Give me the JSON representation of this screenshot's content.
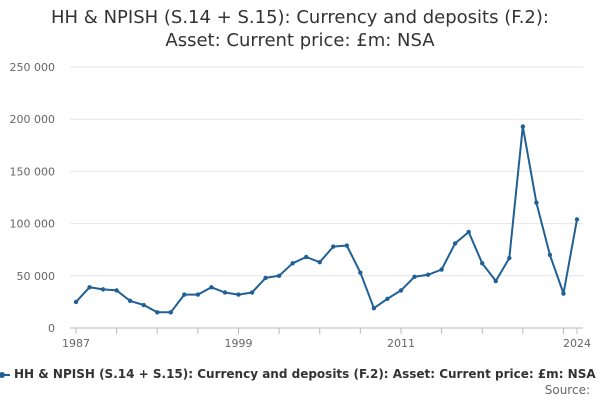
{
  "chart_data": {
    "type": "line",
    "title": "HH & NPISH (S.14 + S.15): Currency and deposits (F.2): Asset: Current price: £m: NSA",
    "title_lines": [
      "HH & NPISH (S.14 + S.15): Currency and deposits (F.2):",
      "Asset: Current price: £m: NSA"
    ],
    "xlabel": "",
    "ylabel": "",
    "x_ticks": [
      "1987",
      "1999",
      "2011",
      "2024"
    ],
    "y_ticks": [
      "0",
      "50 000",
      "100 000",
      "150 000",
      "200 000",
      "250 000"
    ],
    "y_tick_values": [
      0,
      50000,
      100000,
      150000,
      200000,
      250000
    ],
    "xlim": [
      1987,
      2024
    ],
    "ylim": [
      0,
      250000
    ],
    "grid": true,
    "legend_position": "bottom",
    "source_label": "Source:",
    "series": [
      {
        "name": "HH & NPISH (S.14 + S.15): Currency and deposits (F.2): Asset: Current price: £m: NSA",
        "color": "#206095",
        "x": [
          1987,
          1988,
          1989,
          1990,
          1991,
          1992,
          1993,
          1994,
          1995,
          1996,
          1997,
          1998,
          1999,
          2000,
          2001,
          2002,
          2003,
          2004,
          2005,
          2006,
          2007,
          2008,
          2009,
          2010,
          2011,
          2012,
          2013,
          2014,
          2015,
          2016,
          2017,
          2018,
          2019,
          2020,
          2021,
          2022,
          2023,
          2024
        ],
        "values": [
          25000,
          39000,
          37000,
          36000,
          26000,
          22000,
          15000,
          15000,
          32000,
          32000,
          39000,
          34000,
          32000,
          34000,
          48000,
          50000,
          62000,
          68000,
          63000,
          78000,
          79000,
          53000,
          19000,
          28000,
          36000,
          49000,
          51000,
          56000,
          81000,
          92000,
          62000,
          45000,
          67000,
          193000,
          120000,
          70000,
          33000,
          104000
        ]
      }
    ]
  }
}
